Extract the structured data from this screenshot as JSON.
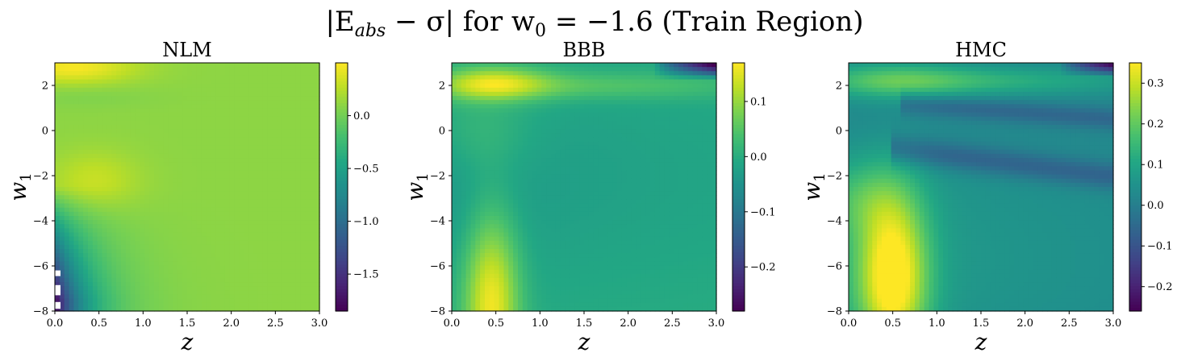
{
  "figure": {
    "title_base": "|E",
    "title_sub": "abs",
    "title_rest": " − σ| for w",
    "title_sub2": "0",
    "title_tail": " = −1.6 (Train Region)"
  },
  "chart_data": [
    {
      "type": "heatmap",
      "title": "NLM",
      "xlabel": "z",
      "ylabel": "w",
      "ylabel_sub": "1",
      "xlim": [
        0,
        3
      ],
      "ylim": [
        -8,
        3
      ],
      "xticks": [
        0.0,
        0.5,
        1.0,
        1.5,
        2.0,
        2.5,
        3.0
      ],
      "xtick_labels": [
        "0.0",
        "0.5",
        "1.0",
        "1.5",
        "2.0",
        "2.5",
        "3.0"
      ],
      "yticks": [
        2,
        0,
        -2,
        -4,
        -6,
        -8
      ],
      "ytick_labels": [
        "2",
        "0",
        "−2",
        "−4",
        "−6",
        "−8"
      ],
      "colormap": "viridis",
      "clim": [
        -1.85,
        0.5
      ],
      "cbar_ticks": [
        0.0,
        -0.5,
        -1.0,
        -1.5
      ],
      "cbar_tick_labels": [
        "0.0",
        "−0.5",
        "−1.0",
        "−1.5"
      ],
      "features": {
        "base": 0.1,
        "bumps": [
          {
            "z": 0.2,
            "w": 2.8,
            "sz": 0.5,
            "sw": 0.5,
            "amp": 0.38
          },
          {
            "z": 0.45,
            "w": -2.2,
            "sz": 0.35,
            "sw": 0.9,
            "amp": 0.2
          },
          {
            "z": 0.3,
            "w": 1.5,
            "sz": 0.6,
            "sw": 0.35,
            "amp": -0.05
          }
        ],
        "corner": {
          "w_start": -2.5,
          "z_scale": 0.35,
          "depth": -1.95
        }
      }
    },
    {
      "type": "heatmap",
      "title": "BBB",
      "xlabel": "z",
      "ylabel": "w",
      "ylabel_sub": "1",
      "xlim": [
        0,
        3
      ],
      "ylim": [
        -8,
        3
      ],
      "xticks": [
        0.0,
        0.5,
        1.0,
        1.5,
        2.0,
        2.5,
        3.0
      ],
      "xtick_labels": [
        "0.0",
        "0.5",
        "1.0",
        "1.5",
        "2.0",
        "2.5",
        "3.0"
      ],
      "yticks": [
        2,
        0,
        -2,
        -4,
        -6,
        -8
      ],
      "ytick_labels": [
        "2",
        "0",
        "−2",
        "−4",
        "−6",
        "−8"
      ],
      "colormap": "viridis",
      "clim": [
        -0.28,
        0.17
      ],
      "cbar_ticks": [
        0.1,
        0.0,
        -0.1,
        -0.2
      ],
      "cbar_tick_labels": [
        "0.1",
        "0.0",
        "−0.1",
        "−0.2"
      ],
      "features": {
        "base": 0.0,
        "bumps": [
          {
            "z": 0.45,
            "w": 2.1,
            "sz": 0.45,
            "sw": 0.55,
            "amp": 0.14
          },
          {
            "z": 0.45,
            "w": -7.6,
            "sz": 0.22,
            "sw": 2.8,
            "amp": 0.17
          },
          {
            "z": 1.6,
            "w": 2.0,
            "sz": 1.3,
            "sw": 0.45,
            "amp": 0.06
          },
          {
            "z": 0.3,
            "w": 0.0,
            "sz": 0.45,
            "sw": 1.4,
            "amp": 0.04
          }
        ],
        "bands": [
          {
            "w": 2.5,
            "sw": 0.5,
            "amp": -0.01
          },
          {
            "w": -2.0,
            "sw": 3.5,
            "amp": -0.04
          }
        ],
        "corner_tr": {
          "z_start": 2.3,
          "w_start": 2.3,
          "depth": -0.32
        }
      }
    },
    {
      "type": "heatmap",
      "title": "HMC",
      "xlabel": "z",
      "ylabel": "w",
      "ylabel_sub": "1",
      "xlim": [
        0,
        3
      ],
      "ylim": [
        -8,
        3
      ],
      "xticks": [
        0.0,
        0.5,
        1.0,
        1.5,
        2.0,
        2.5,
        3.0
      ],
      "xtick_labels": [
        "0.0",
        "0.5",
        "1.0",
        "1.5",
        "2.0",
        "2.5",
        "3.0"
      ],
      "yticks": [
        2,
        0,
        -2,
        -4,
        -6,
        -8
      ],
      "ytick_labels": [
        "2",
        "0",
        "−2",
        "−4",
        "−6",
        "−8"
      ],
      "colormap": "viridis",
      "clim": [
        -0.26,
        0.35
      ],
      "cbar_ticks": [
        0.3,
        0.2,
        0.1,
        0.0,
        -0.1,
        -0.2
      ],
      "cbar_tick_labels": [
        "0.3",
        "0.2",
        "0.1",
        "0.0",
        "−0.1",
        "−0.2"
      ],
      "features": {
        "base": 0.02,
        "bumps": [
          {
            "z": 0.5,
            "w": -6.5,
            "sz": 0.28,
            "sw": 2.6,
            "amp": 0.33
          },
          {
            "z": 0.5,
            "w": 2.2,
            "sz": 0.6,
            "sw": 0.6,
            "amp": 0.12
          },
          {
            "z": 1.6,
            "w": 2.2,
            "sz": 1.3,
            "sw": 0.45,
            "amp": 0.1
          },
          {
            "z": 0.15,
            "w": -3.0,
            "sz": 0.35,
            "sw": 1.2,
            "amp": 0.08
          }
        ],
        "bands": [
          {
            "w": -3.0,
            "sw": 2.0,
            "amp": 0.04
          },
          {
            "w": -7.0,
            "sw": 2.5,
            "amp": 0.06
          }
        ],
        "dark_streaks": [
          {
            "w_start": 1.2,
            "w_end": 0.5,
            "z_from": 0.6,
            "width": 0.35,
            "amp": -0.08
          },
          {
            "w_start": -0.8,
            "w_end": -2.0,
            "z_from": 0.5,
            "width": 0.45,
            "amp": -0.1
          }
        ],
        "corner_tr": {
          "z_start": 2.4,
          "w_start": 2.4,
          "depth": -0.32
        }
      }
    }
  ]
}
